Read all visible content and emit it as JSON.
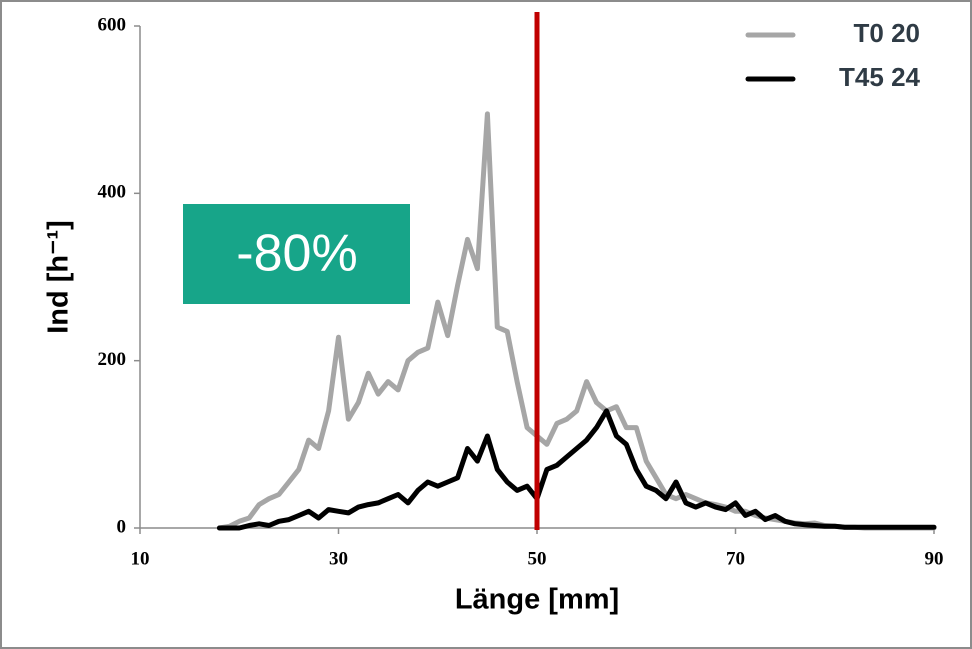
{
  "chart_data": {
    "type": "line",
    "xlabel": "Länge [mm]",
    "ylabel": "Ind [h⁻¹]",
    "annotation": "-80%",
    "annotation_color": "#17a589",
    "x": [
      18,
      19,
      20,
      21,
      22,
      23,
      24,
      25,
      26,
      27,
      28,
      29,
      30,
      31,
      32,
      33,
      34,
      35,
      36,
      37,
      38,
      39,
      40,
      41,
      42,
      43,
      44,
      45,
      46,
      47,
      48,
      49,
      50,
      51,
      52,
      53,
      54,
      55,
      56,
      57,
      58,
      59,
      60,
      61,
      62,
      63,
      64,
      65,
      66,
      67,
      68,
      69,
      70,
      71,
      72,
      73,
      74,
      75,
      76,
      77,
      78,
      79,
      80,
      81,
      82,
      83,
      84,
      85,
      86,
      87,
      88,
      89,
      90
    ],
    "series": [
      {
        "name": "T0 20",
        "color": "#a6a6a6",
        "values": [
          0,
          2,
          8,
          12,
          28,
          35,
          40,
          55,
          70,
          105,
          95,
          140,
          228,
          130,
          150,
          185,
          160,
          175,
          165,
          200,
          210,
          215,
          270,
          230,
          290,
          345,
          310,
          495,
          240,
          235,
          175,
          120,
          110,
          100,
          125,
          130,
          140,
          175,
          150,
          140,
          145,
          120,
          120,
          80,
          60,
          40,
          35,
          40,
          35,
          30,
          28,
          25,
          20,
          20,
          15,
          12,
          10,
          8,
          6,
          5,
          6,
          3,
          2,
          1,
          1,
          0,
          0,
          0,
          0,
          0,
          0,
          0,
          0
        ]
      },
      {
        "name": "T45 24",
        "color": "#000000",
        "values": [
          0,
          0,
          0,
          3,
          5,
          3,
          8,
          10,
          15,
          20,
          12,
          22,
          20,
          18,
          25,
          28,
          30,
          35,
          40,
          30,
          45,
          55,
          50,
          55,
          60,
          95,
          80,
          110,
          70,
          55,
          45,
          50,
          35,
          70,
          75,
          85,
          95,
          105,
          120,
          140,
          110,
          100,
          70,
          50,
          45,
          35,
          55,
          30,
          25,
          30,
          25,
          22,
          30,
          15,
          20,
          10,
          15,
          8,
          5,
          4,
          3,
          2,
          2,
          1,
          1,
          1,
          1,
          1,
          1,
          1,
          1,
          1,
          1
        ]
      }
    ],
    "vline": {
      "x": 50,
      "color": "#c00000"
    },
    "xlim": [
      10,
      90
    ],
    "xticks": [
      10,
      30,
      50,
      70,
      90
    ],
    "ylim": [
      0,
      600
    ],
    "yticks": [
      0,
      200,
      400,
      600
    ],
    "legend": "top-right"
  }
}
